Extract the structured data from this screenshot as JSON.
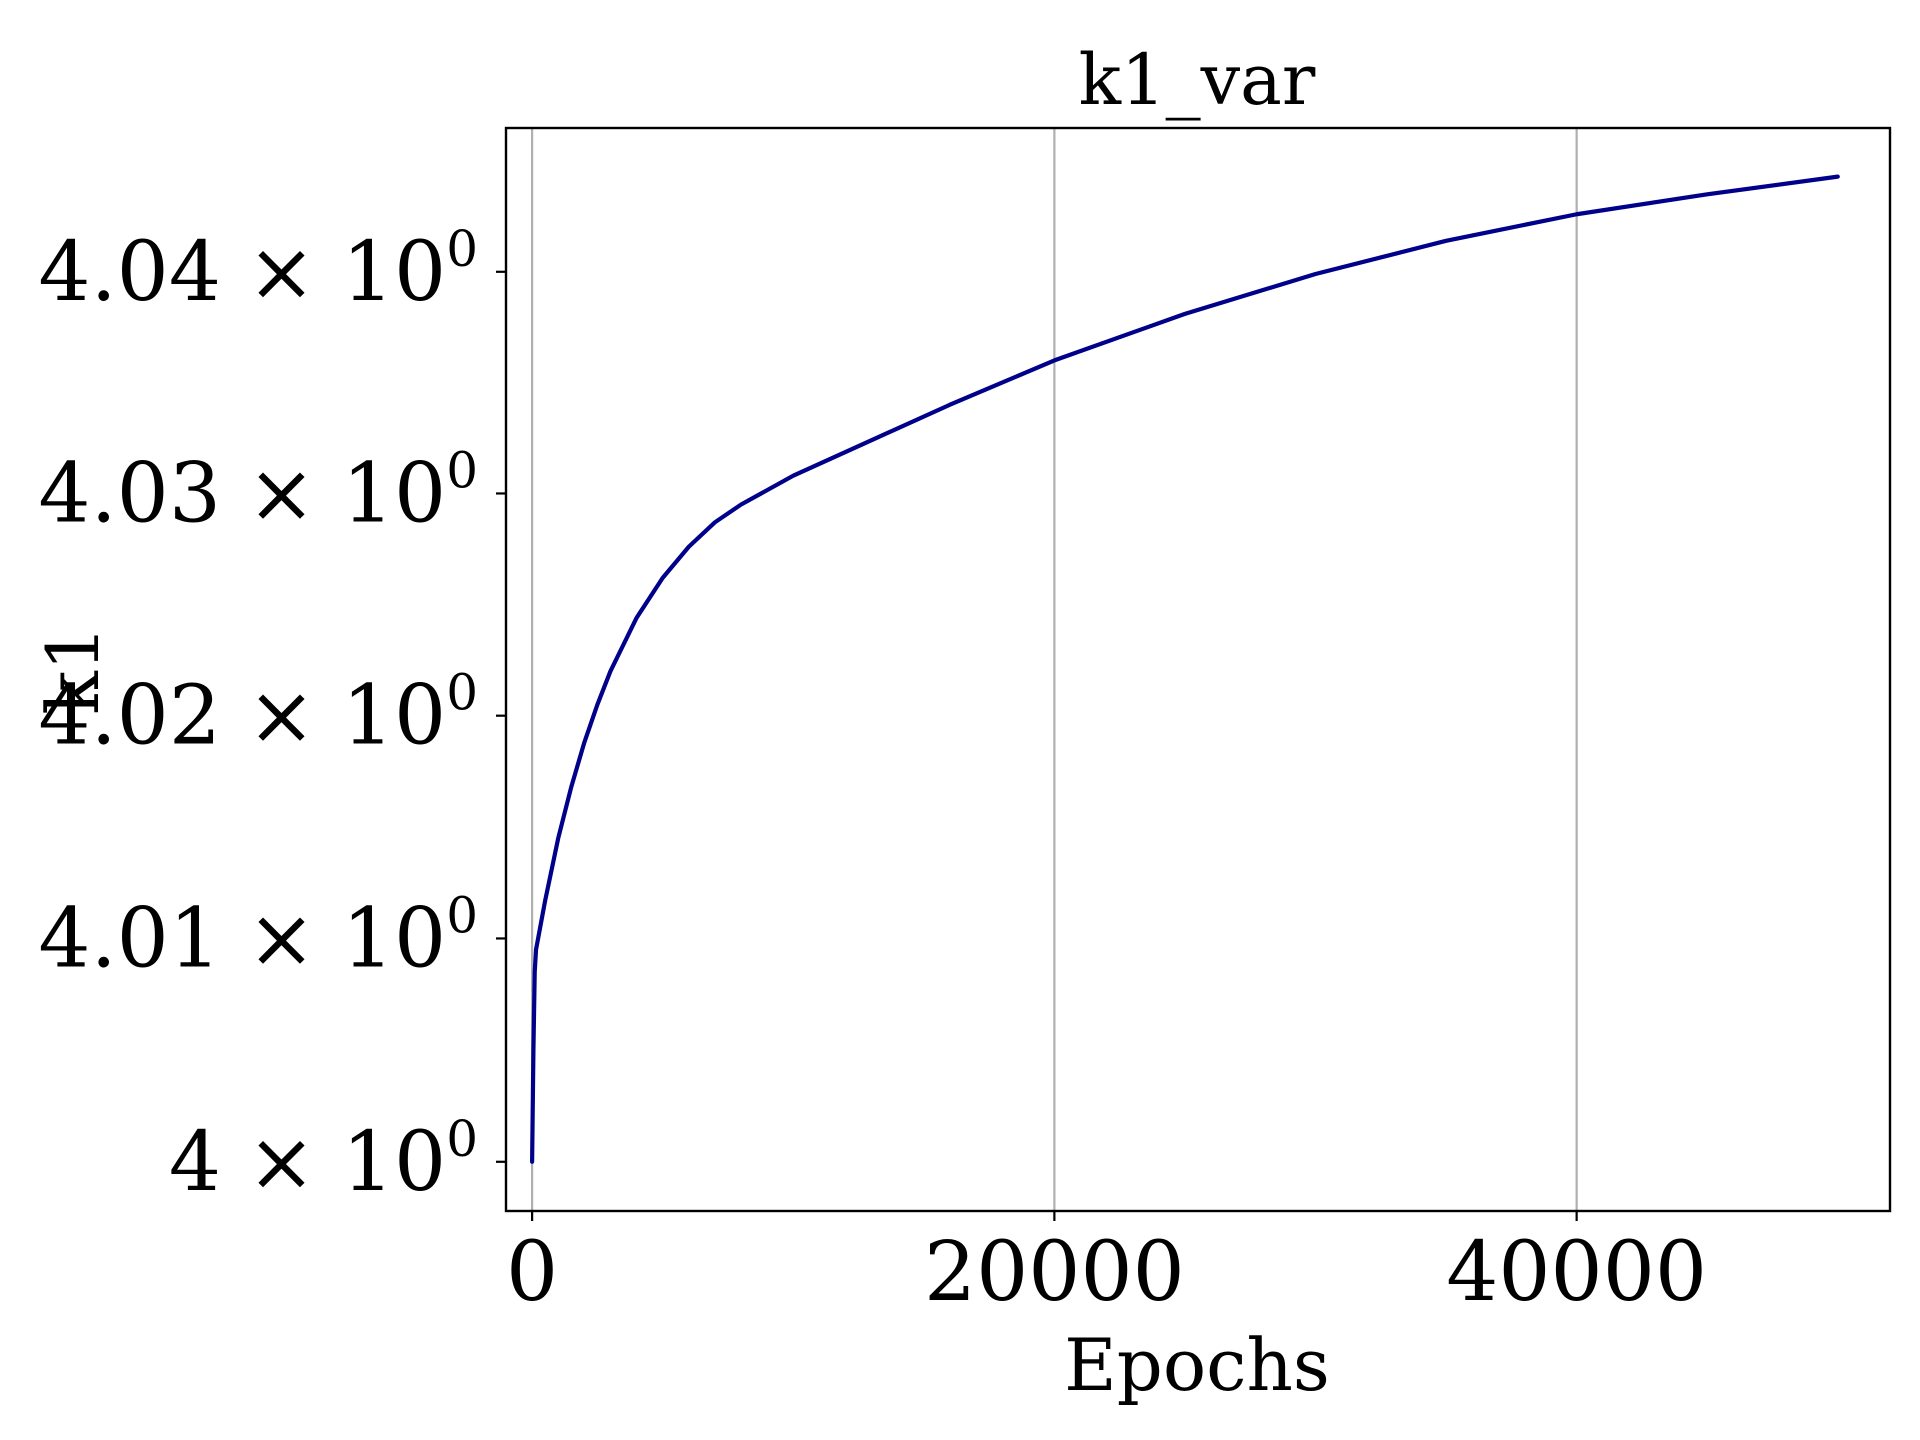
{
  "chart_data": {
    "type": "line",
    "title": "k1_var",
    "xlabel": "Epochs",
    "ylabel": "k1",
    "xlim": [
      -1000,
      52000
    ],
    "ylim": [
      3.9978,
      4.0465
    ],
    "x_ticks": [
      {
        "value": 0,
        "label": "0"
      },
      {
        "value": 20000,
        "label": "20000"
      },
      {
        "value": 40000,
        "label": "40000"
      }
    ],
    "y_ticks": [
      {
        "value": 4.0,
        "mantissa": "4",
        "base": "10",
        "exponent": "0"
      },
      {
        "value": 4.01,
        "mantissa": "4.01",
        "base": "10",
        "exponent": "0"
      },
      {
        "value": 4.02,
        "mantissa": "4.02",
        "base": "10",
        "exponent": "0"
      },
      {
        "value": 4.03,
        "mantissa": "4.03",
        "base": "10",
        "exponent": "0"
      },
      {
        "value": 4.04,
        "mantissa": "4.04",
        "base": "10",
        "exponent": "0"
      }
    ],
    "grid": {
      "x": true,
      "y": false
    },
    "y_scale": "log",
    "series": [
      {
        "color": "#00008b",
        "x": [
          0,
          50,
          100,
          150,
          500,
          1000,
          1500,
          2000,
          2500,
          3000,
          3500,
          4000,
          5000,
          6000,
          7000,
          8000,
          10000,
          13000,
          16000,
          20000,
          25000,
          30000,
          35000,
          40000,
          45000,
          50000
        ],
        "y": [
          4.0,
          4.005,
          4.0085,
          4.0095,
          4.0117,
          4.0145,
          4.0168,
          4.0188,
          4.0205,
          4.022,
          4.0232,
          4.0244,
          4.0262,
          4.0276,
          4.0287,
          4.0295,
          4.0308,
          4.0324,
          4.034,
          4.036,
          4.0381,
          4.0399,
          4.0414,
          4.0426,
          4.0435,
          4.0443
        ]
      }
    ]
  }
}
